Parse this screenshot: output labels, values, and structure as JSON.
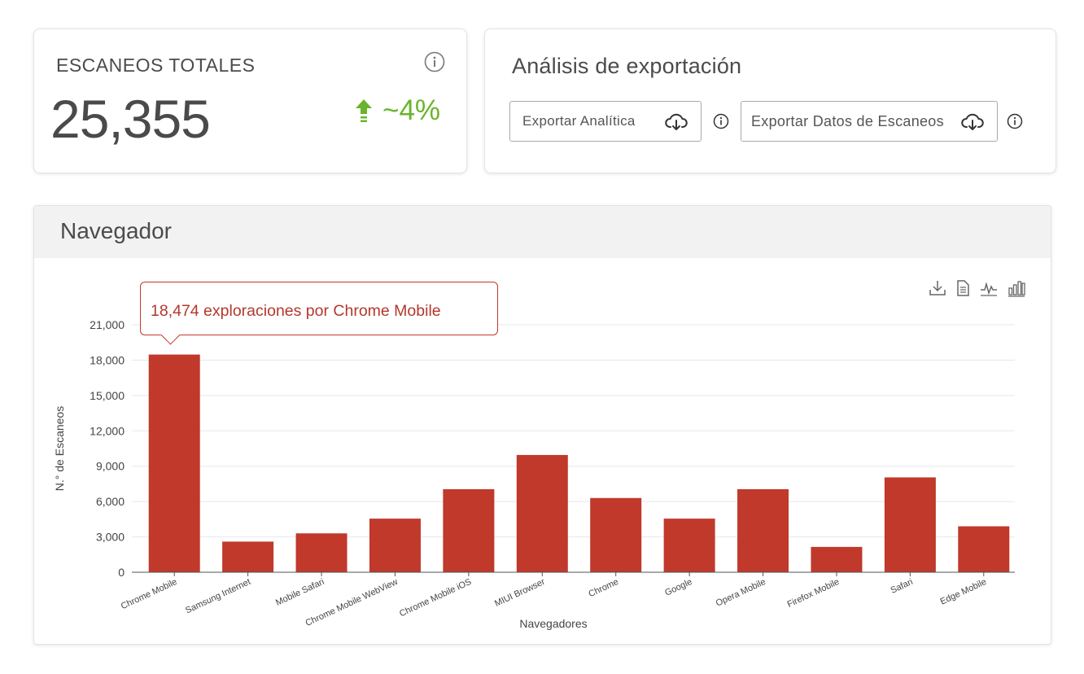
{
  "total_scans": {
    "title": "ESCANEOS TOTALES",
    "value": "25,355",
    "trend": "~4%",
    "trend_direction": "up",
    "trend_color": "#6ab42d"
  },
  "export": {
    "title": "Análisis de exportación",
    "analytics_label": "Exportar Analítica",
    "scans_label": "Exportar Datos de Escaneos"
  },
  "browser": {
    "title": "Navegador",
    "tooltip": "18,474 exploraciones por Chrome Mobile"
  },
  "colors": {
    "bar": "#c0392b",
    "grid": "#e4e7ee",
    "accent_green": "#6ab42d"
  },
  "chart_data": {
    "type": "bar",
    "categories": [
      "Chrome Mobile",
      "Samsung Internet",
      "Mobile Safari",
      "Chrome Mobile WebView",
      "Chrome Mobile iOS",
      "MIUI Browser",
      "Chrome",
      "Google",
      "Opera Mobile",
      "Firefox Mobile",
      "Safari",
      "Edge Mobile"
    ],
    "values": [
      18474,
      2600,
      3300,
      4550,
      7050,
      9950,
      6300,
      4550,
      7050,
      2150,
      8050,
      3900
    ],
    "xlabel": "Navegadores",
    "ylabel": "N.° de Escaneos",
    "yticks": [
      "0",
      "3,000",
      "6,000",
      "9,000",
      "12,000",
      "15,000",
      "18,000",
      "21,000"
    ],
    "ylim": [
      0,
      21000
    ],
    "grid": true,
    "highlighted": "Chrome Mobile"
  }
}
